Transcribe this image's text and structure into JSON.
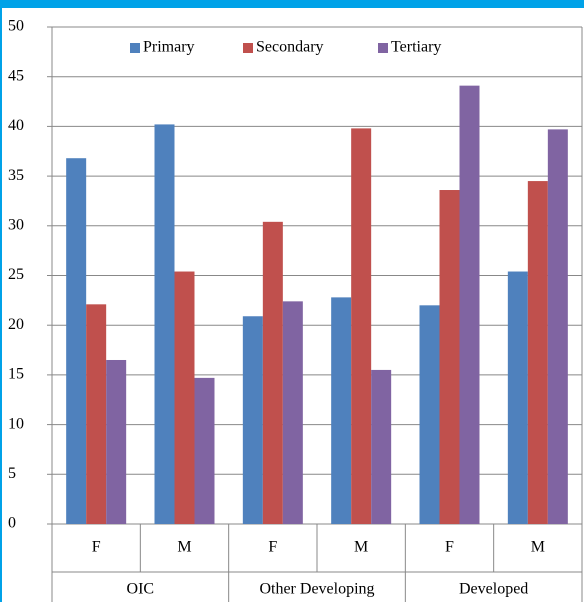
{
  "chart_data": {
    "type": "bar",
    "categories": [
      "F",
      "M",
      "F",
      "M",
      "F",
      "M"
    ],
    "groups": [
      "OIC",
      "Other Developing",
      "Developed"
    ],
    "series": [
      {
        "name": "Primary",
        "color": "#4f81bd",
        "values": [
          36.8,
          40.2,
          20.9,
          22.8,
          22.0,
          25.4
        ]
      },
      {
        "name": "Secondary",
        "color": "#c0504d",
        "values": [
          22.1,
          25.4,
          30.4,
          39.8,
          33.6,
          34.5
        ]
      },
      {
        "name": "Tertiary",
        "color": "#8064a2",
        "values": [
          16.5,
          14.7,
          22.4,
          15.5,
          44.1,
          39.7
        ]
      }
    ],
    "ylim": [
      0,
      50
    ],
    "yticks": [
      0,
      5,
      10,
      15,
      20,
      25,
      30,
      35,
      40,
      45,
      50
    ],
    "grid": true,
    "legend": "top"
  }
}
